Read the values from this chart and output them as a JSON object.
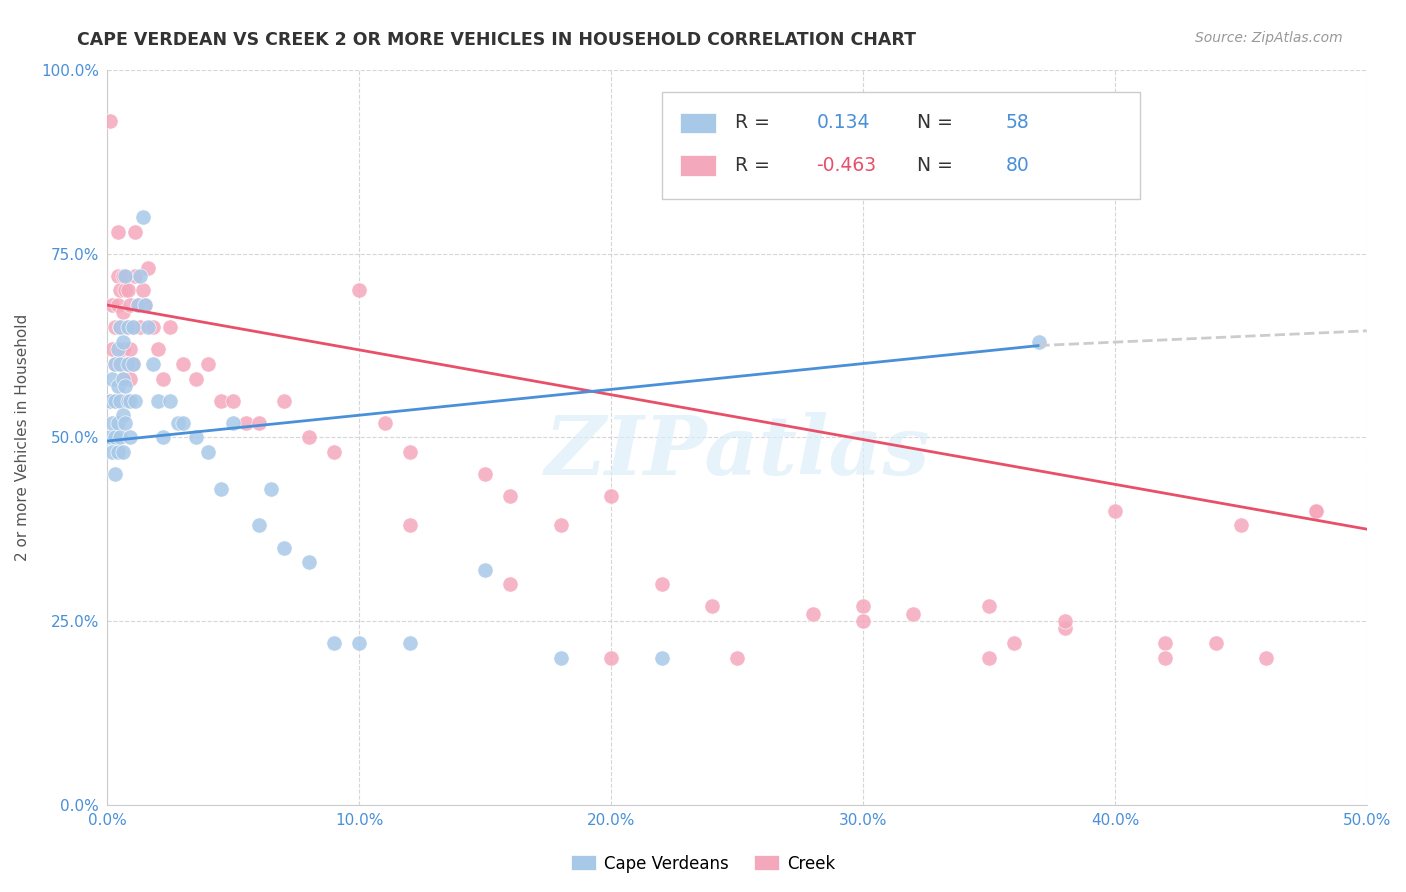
{
  "title": "CAPE VERDEAN VS CREEK 2 OR MORE VEHICLES IN HOUSEHOLD CORRELATION CHART",
  "source": "Source: ZipAtlas.com",
  "ylabel_label": "2 or more Vehicles in Household",
  "xlim": [
    0.0,
    0.5
  ],
  "ylim": [
    0.0,
    1.0
  ],
  "legend_labels": [
    "Cape Verdeans",
    "Creek"
  ],
  "blue_R": 0.134,
  "blue_N": 58,
  "pink_R": -0.463,
  "pink_N": 80,
  "blue_color": "#a8c8e8",
  "pink_color": "#f4a8bc",
  "blue_line_color": "#4a90d9",
  "pink_line_color": "#e8506a",
  "watermark": "ZIPatlas",
  "background_color": "#ffffff",
  "grid_color": "#cccccc",
  "blue_scatter_x": [
    0.001,
    0.001,
    0.002,
    0.002,
    0.002,
    0.003,
    0.003,
    0.003,
    0.003,
    0.004,
    0.004,
    0.004,
    0.004,
    0.005,
    0.005,
    0.005,
    0.005,
    0.006,
    0.006,
    0.006,
    0.006,
    0.007,
    0.007,
    0.007,
    0.008,
    0.008,
    0.008,
    0.009,
    0.009,
    0.01,
    0.01,
    0.011,
    0.012,
    0.013,
    0.014,
    0.015,
    0.016,
    0.018,
    0.02,
    0.022,
    0.025,
    0.028,
    0.03,
    0.035,
    0.04,
    0.045,
    0.05,
    0.06,
    0.065,
    0.07,
    0.08,
    0.09,
    0.1,
    0.12,
    0.15,
    0.18,
    0.22,
    0.37
  ],
  "blue_scatter_y": [
    0.5,
    0.55,
    0.48,
    0.52,
    0.58,
    0.45,
    0.5,
    0.55,
    0.6,
    0.48,
    0.52,
    0.57,
    0.62,
    0.5,
    0.55,
    0.6,
    0.65,
    0.48,
    0.53,
    0.58,
    0.63,
    0.52,
    0.57,
    0.72,
    0.55,
    0.6,
    0.65,
    0.5,
    0.55,
    0.6,
    0.65,
    0.55,
    0.68,
    0.72,
    0.8,
    0.68,
    0.65,
    0.6,
    0.55,
    0.5,
    0.55,
    0.52,
    0.52,
    0.5,
    0.48,
    0.43,
    0.52,
    0.38,
    0.43,
    0.35,
    0.33,
    0.22,
    0.22,
    0.22,
    0.32,
    0.2,
    0.2,
    0.63
  ],
  "pink_scatter_x": [
    0.001,
    0.001,
    0.002,
    0.002,
    0.003,
    0.003,
    0.003,
    0.004,
    0.004,
    0.004,
    0.005,
    0.005,
    0.005,
    0.006,
    0.006,
    0.006,
    0.006,
    0.007,
    0.007,
    0.007,
    0.007,
    0.008,
    0.008,
    0.008,
    0.009,
    0.009,
    0.009,
    0.01,
    0.01,
    0.011,
    0.011,
    0.012,
    0.013,
    0.014,
    0.015,
    0.016,
    0.018,
    0.02,
    0.022,
    0.025,
    0.03,
    0.035,
    0.04,
    0.045,
    0.05,
    0.055,
    0.06,
    0.07,
    0.08,
    0.09,
    0.1,
    0.11,
    0.12,
    0.15,
    0.16,
    0.18,
    0.2,
    0.22,
    0.24,
    0.28,
    0.3,
    0.32,
    0.35,
    0.36,
    0.38,
    0.4,
    0.42,
    0.44,
    0.46,
    0.48,
    0.12,
    0.16,
    0.2,
    0.25,
    0.3,
    0.35,
    0.38,
    0.42,
    0.45,
    0.48
  ],
  "pink_scatter_y": [
    0.93,
    0.55,
    0.62,
    0.68,
    0.55,
    0.6,
    0.65,
    0.68,
    0.72,
    0.78,
    0.6,
    0.65,
    0.7,
    0.58,
    0.62,
    0.67,
    0.72,
    0.55,
    0.6,
    0.65,
    0.7,
    0.6,
    0.65,
    0.7,
    0.58,
    0.62,
    0.68,
    0.6,
    0.65,
    0.72,
    0.78,
    0.68,
    0.65,
    0.7,
    0.68,
    0.73,
    0.65,
    0.62,
    0.58,
    0.65,
    0.6,
    0.58,
    0.6,
    0.55,
    0.55,
    0.52,
    0.52,
    0.55,
    0.5,
    0.48,
    0.7,
    0.52,
    0.48,
    0.45,
    0.42,
    0.38,
    0.42,
    0.3,
    0.27,
    0.26,
    0.27,
    0.26,
    0.27,
    0.22,
    0.24,
    0.4,
    0.22,
    0.22,
    0.2,
    0.4,
    0.38,
    0.3,
    0.2,
    0.2,
    0.25,
    0.2,
    0.25,
    0.2,
    0.38,
    0.4
  ]
}
